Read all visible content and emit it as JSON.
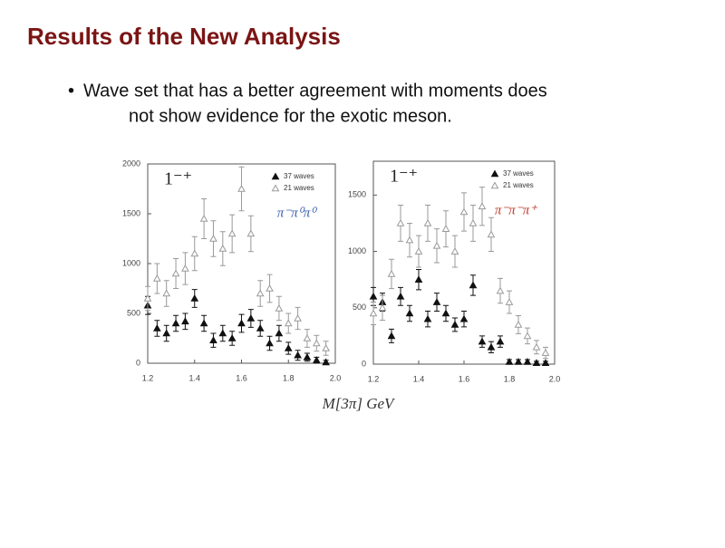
{
  "slide": {
    "title": "Results of the New Analysis",
    "bullet": [
      "Wave set that has a better agreement with moments does",
      "not show evidence for the exotic meson."
    ],
    "xlabel": "M[3π]   GeV"
  },
  "chart_data": [
    {
      "type": "scatter",
      "annotations": [
        "1⁻⁺",
        "π⁻π⁰π⁰"
      ],
      "channel_color": "#3a5fb0",
      "x": [
        1.2,
        1.24,
        1.28,
        1.32,
        1.36,
        1.4,
        1.44,
        1.48,
        1.52,
        1.56,
        1.6,
        1.64,
        1.68,
        1.72,
        1.76,
        1.8,
        1.84,
        1.88,
        1.92,
        1.96
      ],
      "xlim": [
        1.2,
        2.0
      ],
      "xticks": [
        1.2,
        1.4,
        1.6,
        1.8,
        {
          "value": 2.0,
          "label": "2.0"
        }
      ],
      "ylim": [
        0,
        2000
      ],
      "yticks": [
        0,
        500,
        1000,
        1500,
        2000
      ],
      "series": [
        {
          "name": "37 waves",
          "color": "#111111",
          "filled": true,
          "values": [
            580,
            350,
            300,
            400,
            420,
            650,
            400,
            230,
            300,
            250,
            400,
            450,
            350,
            200,
            300,
            150,
            80,
            60,
            30,
            10
          ],
          "errors": [
            90,
            80,
            80,
            80,
            80,
            90,
            80,
            70,
            80,
            70,
            90,
            90,
            80,
            70,
            80,
            60,
            50,
            40,
            30,
            20
          ]
        },
        {
          "name": "21 waves",
          "color": "#999999",
          "filled": false,
          "values": [
            650,
            850,
            700,
            900,
            950,
            1100,
            1450,
            1250,
            1150,
            1300,
            1750,
            1300,
            700,
            750,
            550,
            400,
            450,
            250,
            200,
            150
          ],
          "errors": [
            120,
            150,
            130,
            150,
            160,
            170,
            200,
            180,
            170,
            190,
            220,
            180,
            130,
            140,
            120,
            100,
            110,
            90,
            80,
            70
          ]
        }
      ]
    },
    {
      "type": "scatter",
      "annotations": [
        "1⁻⁺",
        "π⁻π⁻π⁺"
      ],
      "channel_color": "#c0392b",
      "x": [
        1.2,
        1.24,
        1.28,
        1.32,
        1.36,
        1.4,
        1.44,
        1.48,
        1.52,
        1.56,
        1.6,
        1.64,
        1.68,
        1.72,
        1.76,
        1.8,
        1.84,
        1.88,
        1.92,
        1.96
      ],
      "xlim": [
        1.2,
        2.0
      ],
      "xticks": [
        1.2,
        1.4,
        1.6,
        1.8,
        {
          "value": 2.0,
          "label": "2.0"
        }
      ],
      "ylim": [
        0,
        1800
      ],
      "yticks": [
        0,
        500,
        1000,
        1500
      ],
      "series": [
        {
          "name": "37 waves",
          "color": "#111111",
          "filled": true,
          "values": [
            600,
            550,
            250,
            600,
            450,
            750,
            400,
            550,
            450,
            350,
            400,
            700,
            200,
            150,
            200,
            20,
            20,
            20,
            10,
            10
          ],
          "errors": [
            80,
            80,
            60,
            80,
            70,
            90,
            70,
            80,
            70,
            60,
            70,
            90,
            50,
            50,
            50,
            20,
            20,
            20,
            15,
            15
          ]
        },
        {
          "name": "21 waves",
          "color": "#999999",
          "filled": false,
          "values": [
            450,
            500,
            800,
            1250,
            1100,
            1000,
            1250,
            1050,
            1200,
            1000,
            1350,
            1250,
            1400,
            1150,
            650,
            550,
            350,
            250,
            150,
            100
          ],
          "errors": [
            100,
            110,
            130,
            160,
            150,
            140,
            160,
            150,
            160,
            140,
            170,
            160,
            170,
            150,
            110,
            100,
            80,
            70,
            60,
            50
          ]
        }
      ]
    }
  ]
}
